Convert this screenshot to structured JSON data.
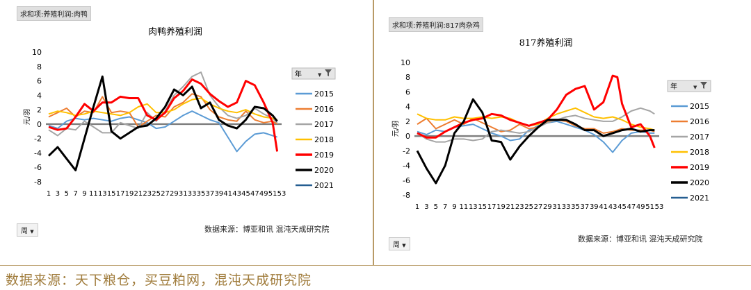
{
  "footer_source": "数据来源：天下粮仓，买豆粕网，混沌天成研究院",
  "legend_colors": {
    "2015": "#5b9bd5",
    "2016": "#ed7d31",
    "2017": "#a5a5a5",
    "2018": "#ffc000",
    "2019": "#ff0000",
    "2020": "#000000",
    "2021": "#255e91"
  },
  "panels": [
    {
      "pivot_label": "求和项:养殖利润:肉鸭",
      "period_button": "周",
      "source": "数据来源：博亚和讯 混沌天成研究院",
      "legend_header": "年",
      "filter_icon": "filter-icon",
      "dropdown_icon": "dropdown-icon"
    },
    {
      "pivot_label": "求和项:养殖利润:817肉杂鸡",
      "period_button": "周",
      "source": "数据来源：博亚和讯 混沌天成研究院",
      "legend_header": "年",
      "filter_icon": "filter-icon",
      "dropdown_icon": "dropdown-icon"
    }
  ],
  "chart_data": [
    {
      "type": "line",
      "title": "肉鸭养殖利润",
      "ylabel": "元/羽",
      "xlabel": "",
      "ylim": [
        -8,
        10
      ],
      "yticks": [
        -8,
        -6,
        -4,
        -2,
        0,
        2,
        4,
        6,
        8,
        10
      ],
      "x_tick_labels": [
        "1",
        "3",
        "5",
        "7",
        "9",
        "11",
        "13",
        "15",
        "17",
        "19",
        "21",
        "23",
        "25",
        "27",
        "29",
        "31",
        "33",
        "35",
        "37",
        "39",
        "41",
        "43",
        "45",
        "47",
        "49",
        "51",
        "53"
      ],
      "xlim": [
        1,
        53
      ],
      "series": [
        {
          "name": "2015",
          "x": [
            1,
            3,
            5,
            7,
            9,
            11,
            13,
            15,
            17,
            19,
            21,
            23,
            25,
            27,
            29,
            31,
            33,
            35,
            37,
            39,
            41,
            43,
            45,
            47,
            49,
            51,
            52
          ],
          "values": [
            -0.2,
            -0.6,
            0.4,
            0.8,
            0.6,
            0.8,
            0.6,
            0.4,
            0.8,
            1.0,
            0.6,
            0.2,
            -0.6,
            -0.4,
            0.4,
            1.2,
            1.8,
            1.2,
            0.6,
            0.2,
            -1.8,
            -3.8,
            -2.4,
            -1.4,
            -1.2,
            -1.6,
            -1.8
          ]
        },
        {
          "name": "2016",
          "x": [
            1,
            3,
            5,
            7,
            9,
            11,
            13,
            15,
            17,
            19,
            21,
            23,
            25,
            27,
            29,
            31,
            33,
            35,
            37,
            39,
            41,
            43,
            45,
            47,
            49,
            51,
            52
          ],
          "values": [
            1.0,
            1.6,
            2.2,
            1.0,
            1.8,
            1.6,
            3.8,
            1.6,
            1.8,
            1.6,
            -0.4,
            0.4,
            1.2,
            1.0,
            2.4,
            3.0,
            4.2,
            3.8,
            2.0,
            1.0,
            0.6,
            0.4,
            1.8,
            0.6,
            0.2,
            0.4,
            0.0
          ]
        },
        {
          "name": "2017",
          "x": [
            1,
            3,
            5,
            7,
            9,
            11,
            13,
            15,
            17,
            19,
            21,
            23,
            25,
            27,
            29,
            31,
            33,
            35,
            37,
            39,
            41,
            43,
            45,
            47,
            49,
            51,
            52
          ],
          "values": [
            -0.8,
            -1.6,
            -0.6,
            -0.8,
            0.4,
            -0.4,
            -1.2,
            -1.2,
            0.2,
            -0.2,
            -0.6,
            1.6,
            0.4,
            1.8,
            4.0,
            5.2,
            6.6,
            7.2,
            4.0,
            2.4,
            1.2,
            0.8,
            1.2,
            2.2,
            1.4,
            0.8,
            0.2
          ]
        },
        {
          "name": "2018",
          "x": [
            1,
            3,
            5,
            7,
            9,
            11,
            13,
            15,
            17,
            19,
            21,
            23,
            25,
            27,
            29,
            31,
            33,
            35,
            37,
            39,
            41,
            43,
            45,
            47,
            49,
            51,
            52
          ],
          "values": [
            1.4,
            1.8,
            1.6,
            1.2,
            1.4,
            1.8,
            1.6,
            1.4,
            1.2,
            1.6,
            2.4,
            2.8,
            1.6,
            1.6,
            2.0,
            2.8,
            3.4,
            3.6,
            2.8,
            2.2,
            1.8,
            1.6,
            2.0,
            1.4,
            1.0,
            0.8,
            0.6
          ]
        },
        {
          "name": "2019",
          "x": [
            1,
            3,
            5,
            7,
            9,
            11,
            13,
            15,
            17,
            19,
            21,
            23,
            25,
            27,
            29,
            31,
            33,
            35,
            37,
            39,
            41,
            43,
            45,
            47,
            49,
            51,
            52
          ],
          "values": [
            -0.4,
            -0.8,
            -0.6,
            1.0,
            2.8,
            1.8,
            3.0,
            3.0,
            3.8,
            3.6,
            3.6,
            1.2,
            0.6,
            1.6,
            3.6,
            4.6,
            6.2,
            5.6,
            4.2,
            3.2,
            2.4,
            3.0,
            6.0,
            5.4,
            3.0,
            0.2,
            -3.8
          ]
        },
        {
          "name": "2020",
          "x": [
            1,
            3,
            5,
            7,
            9,
            11,
            13,
            15,
            17,
            19,
            21,
            23,
            25,
            27,
            29,
            31,
            33,
            35,
            37,
            39,
            41,
            43,
            45,
            47,
            49,
            51,
            52
          ],
          "values": [
            -4.4,
            -3.2,
            -4.8,
            -6.4,
            -2.0,
            2.4,
            6.6,
            -1.0,
            -2.0,
            -1.2,
            -0.4,
            -0.2,
            0.8,
            2.4,
            4.8,
            4.0,
            5.2,
            2.2,
            3.0,
            0.6,
            -0.2,
            -0.6,
            0.6,
            2.4,
            2.2,
            1.2,
            0.4
          ]
        },
        {
          "name": "2021",
          "x": [],
          "values": []
        }
      ]
    },
    {
      "type": "line",
      "title": "817养殖利润",
      "ylabel": "元/羽",
      "xlabel": "",
      "ylim": [
        -8,
        10
      ],
      "yticks": [
        -8,
        -6,
        -4,
        -2,
        0,
        2,
        4,
        6,
        8,
        10
      ],
      "x_tick_labels": [
        "1",
        "3",
        "5",
        "7",
        "9",
        "11",
        "13",
        "15",
        "17",
        "19",
        "21",
        "23",
        "25",
        "27",
        "29",
        "31",
        "33",
        "35",
        "37",
        "39",
        "41",
        "43",
        "45",
        "47",
        "49",
        "51",
        "53"
      ],
      "xlim": [
        1,
        53
      ],
      "series": [
        {
          "name": "2015",
          "x": [
            1,
            3,
            5,
            7,
            9,
            11,
            13,
            15,
            17,
            19,
            21,
            23,
            25,
            27,
            29,
            31,
            33,
            35,
            37,
            39,
            41,
            43,
            45,
            47,
            49,
            51,
            52
          ],
          "values": [
            0.6,
            0.2,
            0.8,
            0.6,
            1.2,
            1.4,
            1.6,
            1.0,
            0.4,
            0.0,
            -0.6,
            -0.4,
            0.8,
            1.4,
            1.8,
            2.0,
            1.6,
            1.2,
            0.8,
            0.2,
            -0.8,
            -2.2,
            -0.6,
            0.4,
            0.6,
            0.4,
            0.4
          ]
        },
        {
          "name": "2016",
          "x": [
            1,
            3,
            5,
            7,
            9,
            11,
            13,
            15,
            17,
            19,
            21,
            23,
            25,
            27,
            29,
            31,
            33,
            35,
            37,
            39,
            41,
            43,
            45,
            47,
            49,
            51,
            52
          ],
          "values": [
            1.6,
            2.4,
            1.0,
            1.6,
            2.2,
            1.6,
            2.4,
            1.8,
            1.2,
            0.6,
            0.8,
            1.6,
            1.0,
            1.2,
            2.0,
            2.2,
            2.0,
            1.4,
            1.0,
            1.0,
            0.4,
            0.6,
            1.0,
            0.8,
            0.8,
            0.8,
            0.6
          ]
        },
        {
          "name": "2017",
          "x": [
            1,
            3,
            5,
            7,
            9,
            11,
            13,
            15,
            17,
            19,
            21,
            23,
            25,
            27,
            29,
            31,
            33,
            35,
            37,
            39,
            41,
            43,
            45,
            47,
            49,
            51,
            52
          ],
          "values": [
            0.4,
            -0.4,
            -0.8,
            -0.8,
            -0.4,
            -0.4,
            -0.6,
            -0.4,
            0.6,
            0.8,
            0.6,
            0.4,
            0.6,
            1.2,
            1.8,
            2.2,
            2.6,
            2.8,
            2.4,
            2.2,
            2.0,
            2.0,
            2.6,
            3.4,
            3.8,
            3.4,
            3.0
          ]
        },
        {
          "name": "2018",
          "x": [
            1,
            3,
            5,
            7,
            9,
            11,
            13,
            15,
            17,
            19,
            21,
            23,
            25,
            27,
            29,
            31,
            33,
            35,
            37,
            39,
            41,
            43,
            45,
            47,
            49,
            51,
            52
          ],
          "values": [
            3.0,
            2.4,
            2.2,
            2.2,
            2.6,
            2.4,
            2.4,
            2.6,
            2.4,
            2.6,
            2.4,
            1.8,
            1.4,
            1.6,
            2.4,
            3.0,
            3.4,
            3.8,
            3.2,
            2.6,
            2.4,
            2.6,
            2.2,
            1.6,
            1.2,
            1.0,
            0.8
          ]
        },
        {
          "name": "2019",
          "x": [
            1,
            3,
            5,
            7,
            9,
            11,
            13,
            15,
            17,
            19,
            21,
            23,
            25,
            27,
            29,
            31,
            33,
            35,
            37,
            39,
            41,
            43,
            44,
            45,
            47,
            49,
            51,
            52
          ],
          "values": [
            0.4,
            -0.2,
            -0.2,
            0.6,
            1.2,
            1.8,
            2.2,
            2.4,
            3.0,
            2.8,
            2.2,
            1.8,
            1.4,
            1.8,
            2.2,
            3.6,
            5.6,
            6.4,
            6.8,
            3.6,
            4.6,
            8.2,
            8.0,
            4.4,
            1.2,
            1.6,
            0.0,
            -1.6
          ]
        },
        {
          "name": "2020",
          "x": [
            1,
            3,
            5,
            7,
            9,
            11,
            13,
            15,
            17,
            19,
            21,
            23,
            25,
            27,
            29,
            31,
            33,
            35,
            37,
            39,
            41,
            43,
            45,
            47,
            49,
            51,
            52
          ],
          "values": [
            -2.0,
            -4.4,
            -6.4,
            -4.0,
            0.4,
            2.0,
            5.0,
            3.2,
            -0.6,
            -0.8,
            -3.2,
            -1.4,
            0.0,
            1.2,
            2.2,
            2.2,
            2.2,
            1.6,
            0.8,
            0.8,
            0.0,
            0.4,
            0.8,
            1.0,
            0.6,
            0.8,
            0.8
          ]
        },
        {
          "name": "2021",
          "x": [],
          "values": []
        }
      ]
    }
  ]
}
